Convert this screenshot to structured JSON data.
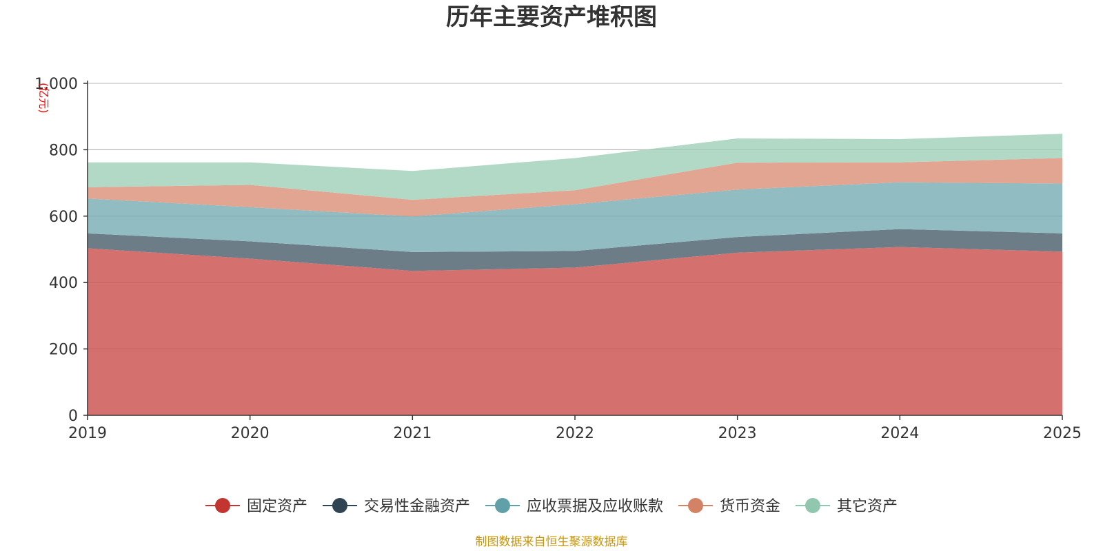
{
  "chart_data": {
    "type": "area",
    "stacked": true,
    "title": "历年主要资产堆积图",
    "unit": "(亿元)",
    "source": "制图数据来自恒生聚源数据库",
    "x": [
      "2019",
      "2020",
      "2021",
      "2022",
      "2023",
      "2024",
      "2025"
    ],
    "ylim": [
      0,
      1000
    ],
    "yticks": [
      0,
      200,
      400,
      600,
      800,
      1000
    ],
    "ytick_labels": [
      "0",
      "200",
      "400",
      "600",
      "800",
      "1,000"
    ],
    "grid": true,
    "legend_position": "bottom",
    "series": [
      {
        "name": "固定资产",
        "color": "#c23531",
        "fill": "#d4706d",
        "values": [
          503,
          472,
          435,
          445,
          490,
          507,
          493
        ]
      },
      {
        "name": "交易性金融资产",
        "color": "#2f4554",
        "fill": "#6d7d88",
        "values": [
          45,
          52,
          57,
          50,
          47,
          54,
          55
        ]
      },
      {
        "name": "应收票据及应收账款",
        "color": "#61a0a8",
        "fill": "#91bcc2",
        "values": [
          105,
          103,
          107,
          141,
          143,
          141,
          150
        ]
      },
      {
        "name": "货币资金",
        "color": "#d48265",
        "fill": "#e1a591",
        "values": [
          34,
          67,
          50,
          42,
          81,
          60,
          77
        ]
      },
      {
        "name": "其它资产",
        "color": "#91c7ae",
        "fill": "#b2d8c6",
        "values": [
          75,
          68,
          87,
          97,
          73,
          70,
          73
        ]
      }
    ]
  }
}
